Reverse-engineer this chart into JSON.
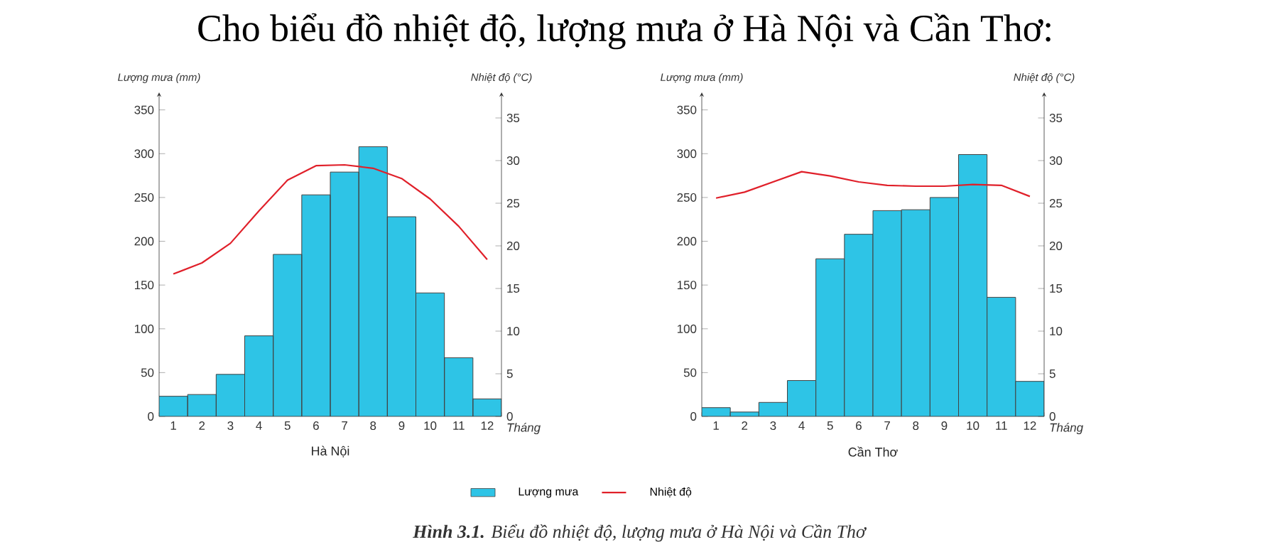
{
  "chart_data": [
    {
      "type": "bar",
      "title": "Hà Nội",
      "xlabel": "Tháng",
      "ylabel": "Lượng mưa (mm)",
      "y2label": "Nhiệt độ (°C)",
      "categories": [
        "1",
        "2",
        "3",
        "4",
        "5",
        "6",
        "7",
        "8",
        "9",
        "10",
        "11",
        "12"
      ],
      "series": [
        {
          "name": "Lượng mưa",
          "color": "#2ec4e6",
          "values": [
            23,
            25,
            48,
            92,
            185,
            253,
            279,
            308,
            228,
            141,
            67,
            20
          ]
        },
        {
          "name": "Nhiệt độ",
          "type": "line",
          "axis": "y2",
          "color": "#e0202a",
          "values": [
            16.7,
            18,
            20.3,
            24.1,
            27.7,
            29.4,
            29.5,
            29.1,
            27.9,
            25.5,
            22.3,
            18.4
          ]
        }
      ],
      "ylim": [
        0,
        370
      ],
      "yticks": [
        0,
        50,
        100,
        150,
        200,
        250,
        300,
        350
      ],
      "y2lim": [
        0,
        38
      ],
      "y2ticks": [
        0,
        5,
        10,
        15,
        20,
        25,
        30,
        35
      ],
      "legend": "bottom",
      "annotations": [
        "Cho biểu đồ nhiệt độ, lượng mưa ở Hà Nội và Cần Thơ:",
        "**Hình 3.1.** Biểu đồ nhiệt độ, lượng mưa ở Hà Nội và Cần Thơ"
      ]
    },
    {
      "type": "bar",
      "title": "Cần Thơ",
      "xlabel": "Tháng",
      "ylabel": "Lượng mưa (mm)",
      "y2label": "Nhiệt độ (°C)",
      "categories": [
        "1",
        "2",
        "3",
        "4",
        "5",
        "6",
        "7",
        "8",
        "9",
        "10",
        "11",
        "12"
      ],
      "series": [
        {
          "color": "#2ec4e6",
          "values": [
            10,
            5,
            16,
            41,
            180,
            208,
            235,
            236,
            250,
            299,
            136,
            40
          ]
        },
        {
          "type": "line",
          "axis": "y2",
          "color": "#e0202a",
          "values": [
            25.6,
            26.3,
            27.5,
            28.7,
            28.2,
            27.5,
            27.1,
            27,
            27,
            27.2,
            27.1,
            25.8
          ]
        }
      ],
      "ylim": [
        0,
        370
      ],
      "yticks": [
        0,
        50,
        100,
        150,
        200,
        250,
        300,
        350
      ],
      "y2lim": [
        0,
        38
      ],
      "y2ticks": [
        0,
        5,
        10,
        15,
        20,
        25,
        30,
        35
      ]
    }
  ]
}
